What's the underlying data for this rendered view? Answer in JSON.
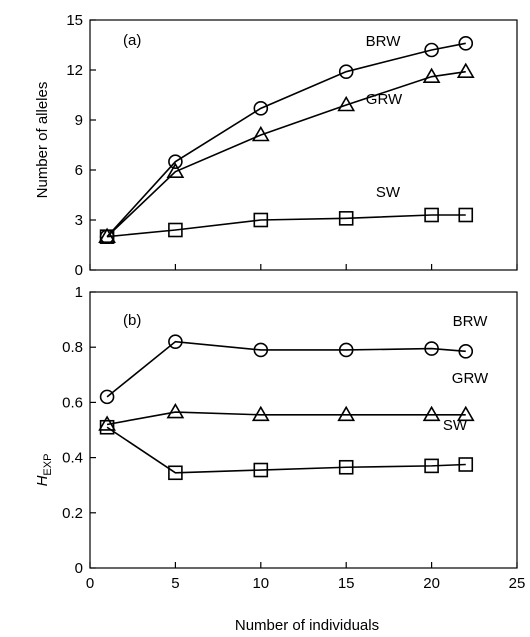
{
  "chart_data": [
    {
      "type": "line",
      "panel_label": "(a)",
      "xlabel": "",
      "ylabel": "Number of alleles",
      "xlim": [
        0,
        25
      ],
      "ylim": [
        0,
        15
      ],
      "xticks": [
        0,
        5,
        10,
        15,
        20,
        25
      ],
      "yticks": [
        0,
        3,
        6,
        9,
        12,
        15
      ],
      "show_x_tick_labels": false,
      "grid": false,
      "series": [
        {
          "name": "BRW",
          "marker": "circle",
          "x": [
            1,
            5,
            10,
            15,
            20,
            22
          ],
          "y": [
            2.0,
            6.5,
            9.7,
            11.9,
            13.2,
            13.6
          ]
        },
        {
          "name": "GRW",
          "marker": "triangle",
          "x": [
            1,
            5,
            10,
            15,
            20,
            22
          ],
          "y": [
            2.0,
            5.9,
            8.1,
            9.9,
            11.6,
            11.9
          ]
        },
        {
          "name": "SW",
          "marker": "square",
          "x": [
            1,
            5,
            10,
            15,
            20,
            22
          ],
          "y": [
            2.0,
            2.4,
            3.0,
            3.1,
            3.3,
            3.3
          ]
        }
      ]
    },
    {
      "type": "line",
      "panel_label": "(b)",
      "xlabel": "Number of individuals",
      "ylabel": "H",
      "ylabel_subscript": "EXP",
      "xlim": [
        0,
        25
      ],
      "ylim": [
        0,
        1
      ],
      "xticks": [
        0,
        5,
        10,
        15,
        20,
        25
      ],
      "yticks": [
        0,
        0.2,
        0.4,
        0.6,
        0.8,
        1
      ],
      "show_x_tick_labels": true,
      "grid": false,
      "series": [
        {
          "name": "BRW",
          "marker": "circle",
          "x": [
            1,
            5,
            10,
            15,
            20,
            22
          ],
          "y": [
            0.62,
            0.82,
            0.79,
            0.79,
            0.795,
            0.785
          ]
        },
        {
          "name": "GRW",
          "marker": "triangle",
          "x": [
            1,
            5,
            10,
            15,
            20,
            22
          ],
          "y": [
            0.52,
            0.565,
            0.555,
            0.555,
            0.555,
            0.555
          ]
        },
        {
          "name": "SW",
          "marker": "square",
          "x": [
            1,
            5,
            10,
            15,
            20,
            22
          ],
          "y": [
            0.51,
            0.345,
            0.355,
            0.365,
            0.37,
            0.375
          ]
        }
      ]
    }
  ]
}
